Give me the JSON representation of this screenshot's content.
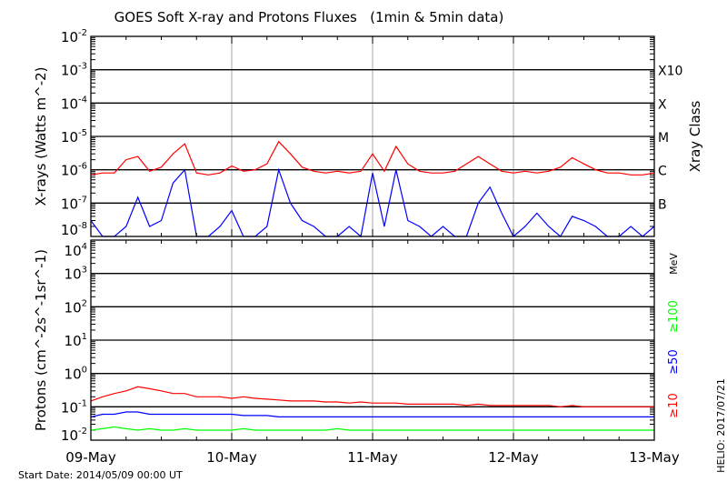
{
  "chart_data": [
    {
      "type": "line",
      "title": "GOES Soft X-ray and Protons Fluxes   (1min & 5min data)",
      "ylabel": "X-rays (Watts m^-2)",
      "yscale": "log",
      "ylim": [
        1e-08,
        0.01
      ],
      "yticks": [
        "10^-2",
        "10^-3",
        "10^-4",
        "10^-5",
        "10^-6",
        "10^-7",
        "10^-8"
      ],
      "right_axis_label": "Xray Class",
      "right_ticks": [
        {
          "label": "X10",
          "value": 0.001
        },
        {
          "label": "X",
          "value": 0.0001
        },
        {
          "label": "M",
          "value": 1e-05
        },
        {
          "label": "C",
          "value": 1e-06
        },
        {
          "label": "B",
          "value": 1e-07
        }
      ],
      "grid": "horizontal at decades",
      "x_hours": [
        0,
        2,
        4,
        6,
        8,
        10,
        12,
        14,
        16,
        18,
        20,
        22,
        24,
        26,
        28,
        30,
        32,
        34,
        36,
        38,
        40,
        42,
        44,
        46,
        48,
        50,
        52,
        54,
        56,
        58,
        60,
        62,
        64,
        66,
        68,
        70,
        72,
        74,
        76,
        78,
        80,
        82,
        84,
        86,
        88,
        90,
        92,
        94,
        96
      ],
      "series": [
        {
          "color": "#ff0000",
          "values": [
            7e-07,
            8e-07,
            8e-07,
            2e-06,
            2.5e-06,
            9e-07,
            1.2e-06,
            3e-06,
            6e-06,
            8e-07,
            7e-07,
            8e-07,
            1.3e-06,
            9e-07,
            1e-06,
            1.5e-06,
            7e-06,
            3e-06,
            1.2e-06,
            9e-07,
            8e-07,
            9e-07,
            8e-07,
            9e-07,
            3e-06,
            9e-07,
            5e-06,
            1.5e-06,
            9e-07,
            8e-07,
            8e-07,
            9e-07,
            1.5e-06,
            2.5e-06,
            1.5e-06,
            9e-07,
            8e-07,
            9e-07,
            8e-07,
            9e-07,
            1.2e-06,
            2.3e-06,
            1.5e-06,
            1e-06,
            8e-07,
            8e-07,
            7e-07,
            7e-07,
            8e-07
          ]
        },
        {
          "color": "#0000ff",
          "values": [
            3e-08,
            5e-09,
            5e-09,
            2e-08,
            1.5e-07,
            2e-08,
            3e-08,
            4e-07,
            1e-06,
            5e-09,
            5e-09,
            2e-08,
            6e-08,
            5e-09,
            5e-09,
            2e-08,
            1e-06,
            1e-07,
            3e-08,
            2e-08,
            5e-09,
            5e-09,
            2e-08,
            5e-09,
            8e-07,
            2e-08,
            1e-06,
            3e-08,
            2e-08,
            5e-09,
            2e-08,
            5e-09,
            5e-09,
            1e-07,
            3e-07,
            5e-08,
            5e-09,
            2e-08,
            5e-08,
            2e-08,
            5e-09,
            4e-08,
            3e-08,
            2e-08,
            5e-09,
            5e-09,
            2e-08,
            5e-09,
            2e-08
          ]
        }
      ]
    },
    {
      "type": "line",
      "ylabel": "Protons (cm^-2s^-1sr^-1)",
      "yscale": "log",
      "ylim": [
        0.01,
        10000.0
      ],
      "yticks": [
        "10^4",
        "10^3",
        "10^2",
        "10^1",
        "10^0",
        "10^-1",
        "10^-2"
      ],
      "dashed_line_value": 10,
      "unit_label": "MeV",
      "x_hours": [
        0,
        2,
        4,
        6,
        8,
        10,
        12,
        14,
        16,
        18,
        20,
        22,
        24,
        26,
        28,
        30,
        32,
        34,
        36,
        38,
        40,
        42,
        44,
        46,
        48,
        50,
        52,
        54,
        56,
        58,
        60,
        62,
        64,
        66,
        68,
        70,
        72,
        74,
        76,
        78,
        80,
        82,
        84,
        86,
        88,
        90,
        92,
        94,
        96
      ],
      "series": [
        {
          "name": "≥10",
          "color": "#ff0000",
          "values": [
            0.15,
            0.2,
            0.25,
            0.3,
            0.4,
            0.35,
            0.3,
            0.25,
            0.25,
            0.2,
            0.2,
            0.2,
            0.18,
            0.2,
            0.18,
            0.17,
            0.16,
            0.15,
            0.15,
            0.15,
            0.14,
            0.14,
            0.13,
            0.14,
            0.13,
            0.13,
            0.13,
            0.12,
            0.12,
            0.12,
            0.12,
            0.12,
            0.11,
            0.12,
            0.11,
            0.11,
            0.11,
            0.11,
            0.11,
            0.11,
            0.1,
            0.11,
            0.1,
            0.1,
            0.1,
            0.1,
            0.1,
            0.1,
            0.1
          ]
        },
        {
          "name": "≥50",
          "color": "#0000ff",
          "values": [
            0.05,
            0.06,
            0.06,
            0.07,
            0.07,
            0.06,
            0.06,
            0.06,
            0.06,
            0.06,
            0.06,
            0.06,
            0.06,
            0.055,
            0.055,
            0.055,
            0.05,
            0.05,
            0.05,
            0.05,
            0.05,
            0.05,
            0.05,
            0.05,
            0.05,
            0.05,
            0.05,
            0.05,
            0.05,
            0.05,
            0.05,
            0.05,
            0.05,
            0.05,
            0.05,
            0.05,
            0.05,
            0.05,
            0.05,
            0.05,
            0.05,
            0.05,
            0.05,
            0.05,
            0.05,
            0.05,
            0.05,
            0.05,
            0.05
          ]
        },
        {
          "name": "≥100",
          "color": "#00ff00",
          "values": [
            0.02,
            0.022,
            0.025,
            0.022,
            0.02,
            0.022,
            0.02,
            0.02,
            0.022,
            0.02,
            0.02,
            0.02,
            0.02,
            0.022,
            0.02,
            0.02,
            0.02,
            0.02,
            0.02,
            0.02,
            0.02,
            0.022,
            0.02,
            0.02,
            0.02,
            0.02,
            0.02,
            0.02,
            0.02,
            0.02,
            0.02,
            0.02,
            0.02,
            0.02,
            0.02,
            0.02,
            0.02,
            0.02,
            0.02,
            0.02,
            0.02,
            0.02,
            0.02,
            0.02,
            0.02,
            0.02,
            0.02,
            0.02,
            0.02
          ]
        }
      ]
    }
  ],
  "x_ticks": [
    "09-May",
    "10-May",
    "11-May",
    "12-May",
    "13-May"
  ],
  "start_date": "Start Date: 2014/05/09 00:00 UT",
  "credit": "HELIO: 2017/07/21"
}
